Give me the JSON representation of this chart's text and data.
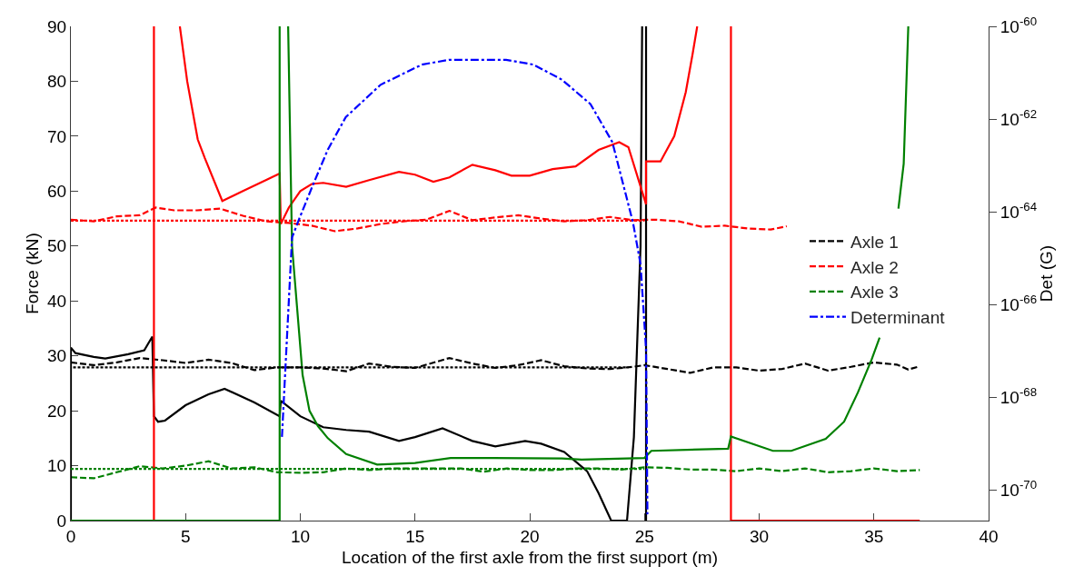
{
  "chart_data": {
    "type": "line",
    "xlabel": "Location of the first axle from the first support (m)",
    "ylabel": "Force (kN)",
    "y2label": "Det (G)",
    "xlim": [
      0,
      40
    ],
    "xticks": [
      0,
      5,
      10,
      15,
      20,
      25,
      30,
      35,
      40
    ],
    "ylim": [
      0,
      90
    ],
    "yticks": [
      0,
      10,
      20,
      30,
      40,
      50,
      60,
      70,
      80,
      90
    ],
    "y2lim": [
      2.2e-71,
      1e-60
    ],
    "y2ticks": [
      {
        "value": 1e-60,
        "label": "10$^{-60}$"
      },
      {
        "value": 1e-62,
        "label": "10$^{-62}$"
      },
      {
        "value": 1e-64,
        "label": "10$^{-64}$"
      },
      {
        "value": 1e-66,
        "label": "10$^{-66}$"
      },
      {
        "value": 1e-68,
        "label": "10$^{-68}$"
      },
      {
        "value": 1e-70,
        "label": "10$^{-70}$"
      }
    ],
    "log": "y2",
    "grid": false,
    "legend": "right",
    "series": [
      {
        "name": "Axle 1",
        "color": "#000000",
        "line_style": "dashed",
        "x": [
          0,
          1,
          2,
          3,
          4,
          5,
          6,
          7,
          8,
          9,
          10,
          11,
          12,
          13,
          14,
          15,
          16,
          16.5,
          17.5,
          18.5,
          19.5,
          20.5,
          21.5,
          22.5,
          23.5,
          24.5,
          25,
          26,
          27,
          28,
          29,
          30,
          31,
          32,
          33,
          34,
          35,
          36,
          36.5,
          37
        ],
        "values": [
          28.8,
          28.3,
          28.8,
          29.6,
          29.2,
          28.7,
          29.3,
          28.7,
          27.4,
          27.9,
          27.9,
          27.7,
          27.2,
          28.6,
          28,
          27.8,
          29,
          29.6,
          28.6,
          27.8,
          28.3,
          29.2,
          28.1,
          27.7,
          27.6,
          28,
          28.3,
          27.6,
          26.9,
          27.9,
          27.9,
          27.3,
          27.6,
          28.6,
          27.3,
          28,
          28.8,
          28.4,
          27.5,
          28.1
        ]
      },
      {
        "name": "Axle 2",
        "color": "#ff0000",
        "line_style": "dashed",
        "x": [
          0,
          1,
          2,
          3,
          3.7,
          4.5,
          5.5,
          6.5,
          7.5,
          8.5,
          9.5,
          10.5,
          11.5,
          12.5,
          13.5,
          14.5,
          15.5,
          16.5,
          17.5,
          18.5,
          19.5,
          20.5,
          21.5,
          22.5,
          23.5,
          24.5,
          25.5,
          26.5,
          27.5,
          28.5,
          29.5,
          30.5,
          31.2
        ],
        "values": [
          54.8,
          54.5,
          55.4,
          55.6,
          57,
          56.5,
          56.5,
          56.8,
          55.5,
          54.5,
          54.2,
          53.7,
          52.7,
          53.2,
          54,
          54.5,
          54.8,
          56.4,
          54.7,
          55.2,
          55.6,
          55,
          54.5,
          54.7,
          55.3,
          54.7,
          54.8,
          54.5,
          53.5,
          53.7,
          53.2,
          53,
          53.6
        ]
      },
      {
        "name": "Axle 3",
        "color": "#008000",
        "line_style": "dashed",
        "x": [
          0,
          1,
          2,
          3,
          4,
          5,
          6,
          7,
          8,
          9,
          10,
          11,
          12,
          13,
          14,
          15,
          16,
          17,
          18,
          19,
          20,
          21,
          22,
          23,
          24,
          25,
          26,
          27,
          28,
          29,
          30,
          31,
          32,
          33,
          34,
          35,
          36,
          37
        ],
        "values": [
          7.9,
          7.7,
          8.8,
          9.9,
          9.5,
          10,
          10.8,
          9.5,
          9.7,
          8.8,
          8.7,
          8.8,
          9.5,
          9.2,
          9.5,
          9.5,
          9.5,
          9.5,
          8.9,
          9.5,
          9.2,
          9.2,
          9.5,
          9.5,
          9.3,
          9.7,
          9.6,
          9.3,
          9.3,
          9,
          9.5,
          9,
          9.5,
          8.8,
          9,
          9.5,
          9,
          9.2
        ]
      },
      {
        "name": "Determinant",
        "color": "#0000ff",
        "line_style": "dashdot",
        "axis": "y2",
        "x": [
          9.2,
          9.64,
          9.94,
          10.55,
          11.2,
          11.98,
          13.5,
          15.3,
          16.5,
          18.97,
          20.15,
          21.4,
          22.65,
          23.6,
          24.5,
          24.83,
          25.07,
          25.13
        ],
        "values": [
          1.4e-69,
          2.8e-65,
          6.8e-65,
          3.8e-64,
          2.2e-63,
          1.1e-62,
          5.5e-62,
          1.5e-61,
          1.9e-61,
          1.9e-61,
          1.5e-61,
          7.1e-62,
          2.1e-62,
          3.2e-63,
          5.9e-65,
          7.4e-66,
          1.1e-67,
          3e-71
        ]
      },
      {
        "color": "#000000",
        "line_style": "solid",
        "x": [
          0,
          0,
          0.2,
          1,
          1.5,
          2.5,
          3.2,
          3.55,
          3.62,
          3.8,
          4.1,
          5,
          6,
          6.7,
          8,
          9.1,
          9.15,
          10,
          11,
          12,
          13,
          14.3,
          15,
          16.2,
          17.5,
          18.5,
          19.8,
          20.5,
          21.5,
          22.5,
          23,
          23.55,
          24.24,
          24.54,
          24.83,
          24.9,
          24.95,
          25.07,
          25.07
        ],
        "values": [
          0,
          31.5,
          30.5,
          29.8,
          29.5,
          30.3,
          31,
          33.5,
          19,
          18,
          18.2,
          21,
          23,
          24,
          21.5,
          19,
          21.8,
          19,
          17,
          16.5,
          16.2,
          14.5,
          15.2,
          16.8,
          14.5,
          13.5,
          14.5,
          14,
          12.5,
          9,
          5,
          0,
          0,
          15.2,
          50,
          90,
          null,
          90,
          0
        ]
      },
      {
        "color": "#ff0000",
        "line_style": "solid",
        "x": [
          0,
          3.62,
          3.62,
          4.2,
          4.75,
          5.07,
          5.53,
          5.84,
          6.6,
          7.5,
          8.5,
          9.1,
          9.15,
          9.5,
          10,
          10.5,
          11,
          12,
          13,
          14.3,
          15,
          15.8,
          16.5,
          17.5,
          18.5,
          19.2,
          20,
          21,
          22,
          23,
          23.9,
          24.3,
          25.07,
          25.07,
          25.7,
          26.3,
          26.8,
          27.1,
          27.3,
          28,
          28.77,
          28.77,
          37
        ],
        "values": [
          0,
          0,
          90,
          null,
          90,
          80,
          69.4,
          66,
          58.2,
          60,
          62,
          63.2,
          54,
          57,
          60,
          61.3,
          61.5,
          60.8,
          62,
          63.5,
          63,
          61.7,
          62.5,
          64.8,
          63.8,
          62.8,
          62.8,
          64,
          64.5,
          67.5,
          68.9,
          68,
          57.6,
          65.4,
          65.4,
          70,
          78,
          85,
          90,
          null,
          90,
          0,
          0
        ]
      },
      {
        "color": "#008000",
        "line_style": "solid",
        "x": [
          0,
          9.1,
          9.1,
          9.3,
          9.47,
          9.64,
          10.1,
          10.4,
          10.77,
          11.2,
          12,
          13.35,
          15,
          16.55,
          18.4,
          21.4,
          22.26,
          25,
          25.3,
          28.65,
          28.77,
          30.6,
          31.4,
          32.9,
          33.7,
          34.3,
          34.9,
          35.25,
          35.7,
          36.07,
          36.3,
          36.5
        ],
        "values": [
          0,
          0,
          90,
          null,
          90,
          50,
          26.5,
          20,
          17.2,
          15,
          12.1,
          10.2,
          10.5,
          11.4,
          11.4,
          11.3,
          11.1,
          11.4,
          12.7,
          13.1,
          15.3,
          12.7,
          12.7,
          14.9,
          18,
          23.3,
          29.3,
          33.3,
          null,
          56.8,
          65,
          90
        ]
      },
      {
        "color": "#000000",
        "line_style": "dotted",
        "x": [
          0.1,
          24.3
        ],
        "values": [
          27.9,
          27.9
        ]
      },
      {
        "color": "#ff0000",
        "line_style": "dotted",
        "x": [
          0,
          25
        ],
        "values": [
          54.6,
          54.6
        ]
      },
      {
        "color": "#008000",
        "line_style": "dotted",
        "x": [
          0,
          25
        ],
        "values": [
          9.4,
          9.4
        ]
      }
    ]
  }
}
